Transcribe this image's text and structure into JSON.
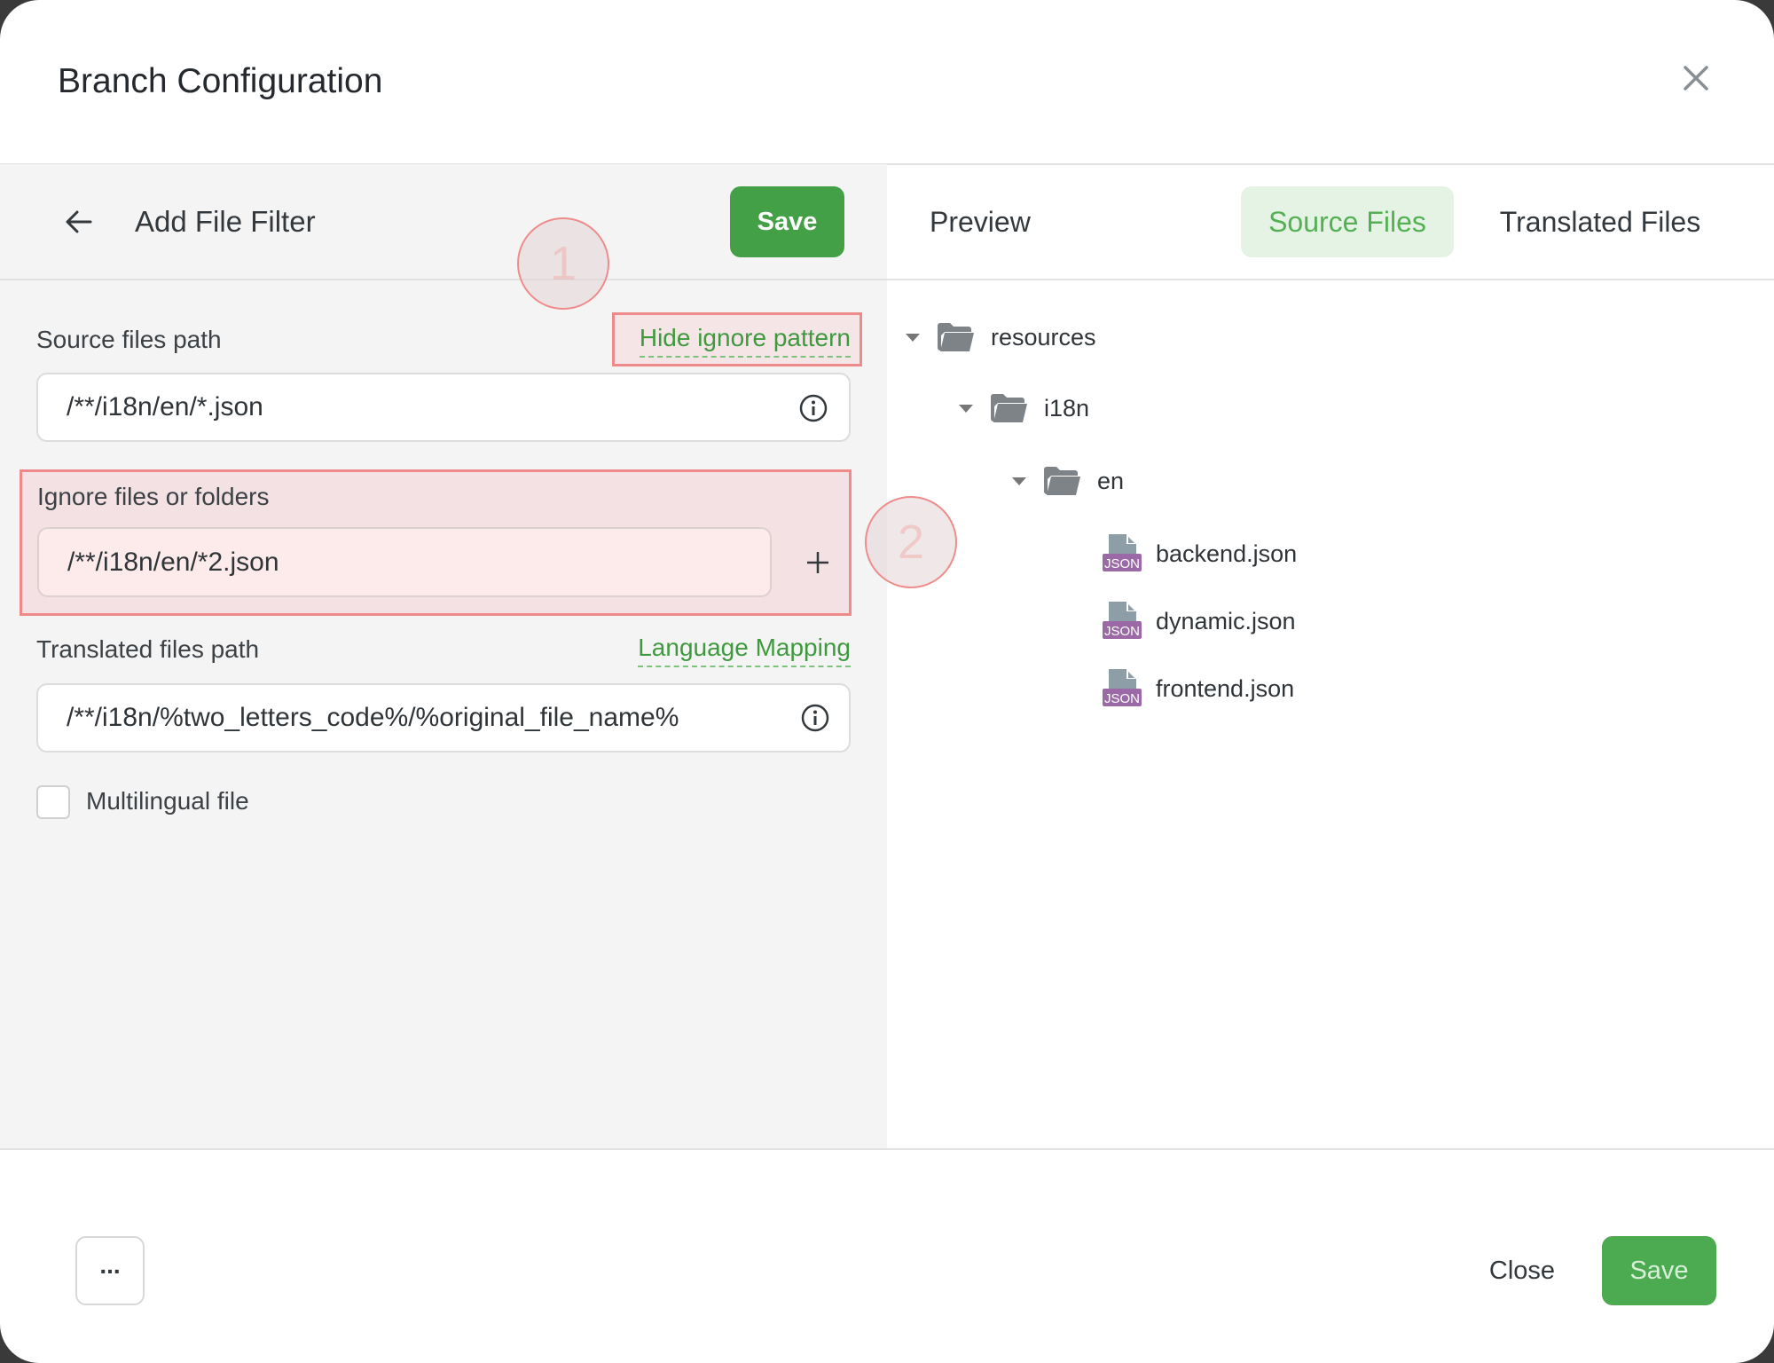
{
  "dialog": {
    "title": "Branch Configuration",
    "close_icon": "close-icon"
  },
  "filter": {
    "back_icon": "arrow-left-icon",
    "title": "Add File Filter",
    "save_label": "Save",
    "source_label": "Source files path",
    "hide_ignore_link": "Hide ignore pattern",
    "source_value": "/**/i18n/en/*.json",
    "ignore_label": "Ignore files or folders",
    "ignore_value": "/**/i18n/en/*2.json",
    "translated_label": "Translated files path",
    "language_mapping_link": "Language Mapping",
    "translated_value": "/**/i18n/%two_letters_code%/%original_file_name%",
    "multilingual_label": "Multilingual file",
    "multilingual_checked": false
  },
  "annotations": {
    "step1": "1",
    "step2": "2",
    "highlight_color": "#ef8a8a"
  },
  "preview": {
    "title": "Preview",
    "tabs": [
      {
        "label": "Source Files",
        "active": true
      },
      {
        "label": "Translated Files",
        "active": false
      }
    ],
    "tree": {
      "folders": [
        "resources",
        "i18n",
        "en"
      ],
      "files": [
        {
          "name": "backend.json",
          "badge": "JSON"
        },
        {
          "name": "dynamic.json",
          "badge": "JSON"
        },
        {
          "name": "frontend.json",
          "badge": "JSON"
        }
      ]
    }
  },
  "footer": {
    "more_label": "...",
    "close_label": "Close",
    "save_label": "Save"
  },
  "colors": {
    "accent": "#43a047",
    "link": "#3f9a3f",
    "json_badge": "#9b6aa6"
  }
}
